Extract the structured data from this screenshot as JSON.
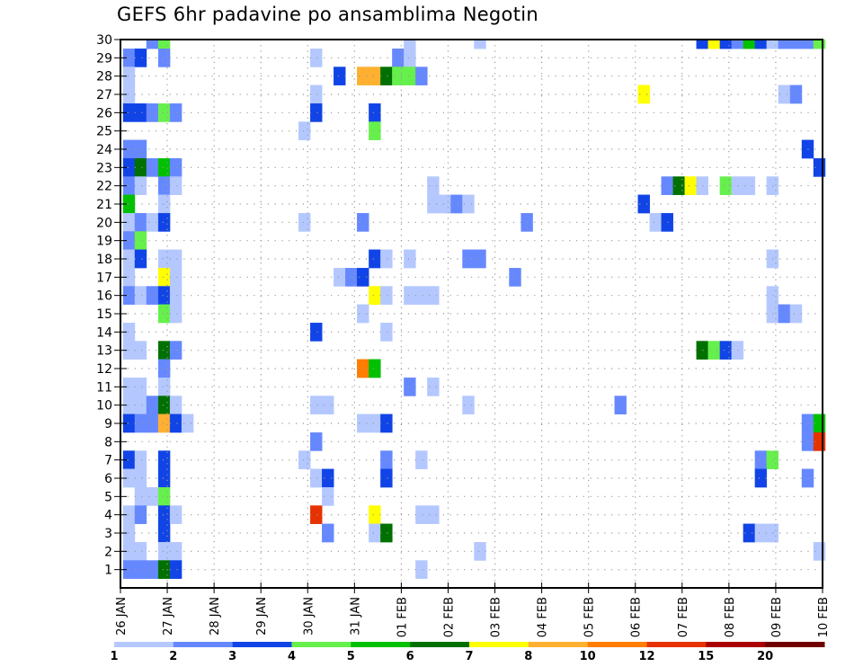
{
  "chart_data": {
    "type": "heatmap",
    "title": "GEFS 6hr padavine po ansamblima Negotin",
    "xlabel": "",
    "ylabel": "",
    "x_ticks": [
      "26 JAN",
      "27 JAN",
      "28 JAN",
      "29 JAN",
      "30 JAN",
      "31 JAN",
      "01 FEB",
      "02 FEB",
      "03 FEB",
      "04 FEB",
      "05 FEB",
      "06 FEB",
      "07 FEB",
      "08 FEB",
      "09 FEB",
      "10 FEB"
    ],
    "y_ticks": [
      1,
      2,
      3,
      4,
      5,
      6,
      7,
      8,
      9,
      10,
      11,
      12,
      13,
      14,
      15,
      16,
      17,
      18,
      19,
      20,
      21,
      22,
      23,
      24,
      25,
      26,
      27,
      28,
      29,
      30
    ],
    "y_range": [
      0,
      30
    ],
    "time_step_hours": 6,
    "n_steps": 60,
    "grid": "dotted",
    "legend_placement": "bottom",
    "levels": [
      1,
      2,
      3,
      4,
      5,
      6,
      7,
      8,
      10,
      12,
      15,
      20
    ],
    "colorbar_labels": [
      "1",
      "2",
      "3",
      "4",
      "5",
      "6",
      "7",
      "8",
      "10",
      "12",
      "15",
      "20"
    ],
    "colors": [
      "#b4c8ff",
      "#6688ff",
      "#1144e6",
      "#66f04c",
      "#00c000",
      "#007000",
      "#ffff00",
      "#ffb030",
      "#ff7d00",
      "#e63200",
      "#aa0000",
      "#700000"
    ],
    "cell_format": "[member, step(1-60, 6h ending), color_class(0-11)]",
    "cells": [
      [
        30,
        3,
        1
      ],
      [
        30,
        4,
        3
      ],
      [
        30,
        25,
        0
      ],
      [
        30,
        31,
        0
      ],
      [
        30,
        50,
        2
      ],
      [
        30,
        51,
        6
      ],
      [
        30,
        52,
        2
      ],
      [
        30,
        53,
        1
      ],
      [
        30,
        54,
        4
      ],
      [
        30,
        55,
        2
      ],
      [
        30,
        56,
        0
      ],
      [
        30,
        57,
        1
      ],
      [
        30,
        58,
        1
      ],
      [
        30,
        59,
        1
      ],
      [
        30,
        60,
        3
      ],
      [
        29,
        1,
        1
      ],
      [
        29,
        2,
        2
      ],
      [
        29,
        4,
        1
      ],
      [
        29,
        17,
        0
      ],
      [
        29,
        24,
        1
      ],
      [
        29,
        25,
        0
      ],
      [
        28,
        1,
        0
      ],
      [
        28,
        19,
        2
      ],
      [
        28,
        21,
        7
      ],
      [
        28,
        22,
        7
      ],
      [
        28,
        23,
        5
      ],
      [
        28,
        24,
        3
      ],
      [
        28,
        25,
        3
      ],
      [
        28,
        26,
        1
      ],
      [
        27,
        1,
        0
      ],
      [
        27,
        17,
        0
      ],
      [
        27,
        45,
        6
      ],
      [
        27,
        57,
        0
      ],
      [
        27,
        58,
        1
      ],
      [
        26,
        1,
        2
      ],
      [
        26,
        2,
        2
      ],
      [
        26,
        3,
        1
      ],
      [
        26,
        4,
        3
      ],
      [
        26,
        5,
        1
      ],
      [
        26,
        17,
        2
      ],
      [
        26,
        22,
        2
      ],
      [
        25,
        16,
        0
      ],
      [
        25,
        22,
        3
      ],
      [
        24,
        1,
        1
      ],
      [
        24,
        2,
        1
      ],
      [
        24,
        59,
        2
      ],
      [
        23,
        1,
        2
      ],
      [
        23,
        2,
        5
      ],
      [
        23,
        3,
        1
      ],
      [
        23,
        4,
        4
      ],
      [
        23,
        5,
        1
      ],
      [
        23,
        60,
        2
      ],
      [
        22,
        1,
        1
      ],
      [
        22,
        2,
        0
      ],
      [
        22,
        4,
        1
      ],
      [
        22,
        5,
        0
      ],
      [
        22,
        27,
        0
      ],
      [
        22,
        47,
        1
      ],
      [
        22,
        48,
        5
      ],
      [
        22,
        49,
        6
      ],
      [
        22,
        50,
        0
      ],
      [
        22,
        52,
        3
      ],
      [
        22,
        53,
        0
      ],
      [
        22,
        54,
        0
      ],
      [
        22,
        56,
        0
      ],
      [
        21,
        1,
        4
      ],
      [
        21,
        4,
        0
      ],
      [
        21,
        27,
        0
      ],
      [
        21,
        28,
        0
      ],
      [
        21,
        29,
        1
      ],
      [
        21,
        30,
        0
      ],
      [
        21,
        45,
        2
      ],
      [
        20,
        1,
        0
      ],
      [
        20,
        2,
        1
      ],
      [
        20,
        3,
        0
      ],
      [
        20,
        4,
        2
      ],
      [
        20,
        16,
        0
      ],
      [
        20,
        21,
        1
      ],
      [
        20,
        35,
        1
      ],
      [
        20,
        46,
        0
      ],
      [
        20,
        47,
        2
      ],
      [
        19,
        1,
        1
      ],
      [
        19,
        2,
        3
      ],
      [
        18,
        1,
        0
      ],
      [
        18,
        2,
        2
      ],
      [
        18,
        4,
        0
      ],
      [
        18,
        5,
        0
      ],
      [
        18,
        22,
        2
      ],
      [
        18,
        23,
        0
      ],
      [
        18,
        25,
        0
      ],
      [
        18,
        30,
        1
      ],
      [
        18,
        31,
        1
      ],
      [
        18,
        56,
        0
      ],
      [
        17,
        1,
        0
      ],
      [
        17,
        4,
        6
      ],
      [
        17,
        5,
        0
      ],
      [
        17,
        19,
        0
      ],
      [
        17,
        20,
        1
      ],
      [
        17,
        21,
        2
      ],
      [
        17,
        34,
        1
      ],
      [
        16,
        1,
        1
      ],
      [
        16,
        2,
        0
      ],
      [
        16,
        3,
        1
      ],
      [
        16,
        4,
        2
      ],
      [
        16,
        5,
        0
      ],
      [
        16,
        22,
        6
      ],
      [
        16,
        23,
        0
      ],
      [
        16,
        25,
        0
      ],
      [
        16,
        26,
        0
      ],
      [
        16,
        27,
        0
      ],
      [
        16,
        56,
        0
      ],
      [
        15,
        4,
        3
      ],
      [
        15,
        5,
        0
      ],
      [
        15,
        21,
        0
      ],
      [
        15,
        56,
        0
      ],
      [
        15,
        57,
        1
      ],
      [
        15,
        58,
        0
      ],
      [
        14,
        1,
        0
      ],
      [
        14,
        17,
        2
      ],
      [
        14,
        23,
        0
      ],
      [
        13,
        1,
        0
      ],
      [
        13,
        2,
        0
      ],
      [
        13,
        4,
        5
      ],
      [
        13,
        5,
        1
      ],
      [
        13,
        50,
        5
      ],
      [
        13,
        51,
        3
      ],
      [
        13,
        52,
        2
      ],
      [
        13,
        53,
        0
      ],
      [
        12,
        4,
        1
      ],
      [
        12,
        21,
        8
      ],
      [
        12,
        22,
        4
      ],
      [
        11,
        1,
        0
      ],
      [
        11,
        2,
        0
      ],
      [
        11,
        4,
        0
      ],
      [
        11,
        25,
        1
      ],
      [
        11,
        27,
        0
      ],
      [
        10,
        1,
        0
      ],
      [
        10,
        2,
        0
      ],
      [
        10,
        3,
        1
      ],
      [
        10,
        4,
        5
      ],
      [
        10,
        5,
        0
      ],
      [
        10,
        17,
        0
      ],
      [
        10,
        18,
        0
      ],
      [
        10,
        30,
        0
      ],
      [
        10,
        43,
        1
      ],
      [
        9,
        1,
        2
      ],
      [
        9,
        2,
        1
      ],
      [
        9,
        3,
        1
      ],
      [
        9,
        4,
        7
      ],
      [
        9,
        5,
        2
      ],
      [
        9,
        6,
        0
      ],
      [
        9,
        21,
        0
      ],
      [
        9,
        22,
        0
      ],
      [
        9,
        23,
        2
      ],
      [
        9,
        59,
        1
      ],
      [
        9,
        60,
        4
      ],
      [
        8,
        17,
        1
      ],
      [
        8,
        59,
        1
      ],
      [
        8,
        60,
        9
      ],
      [
        7,
        1,
        2
      ],
      [
        7,
        2,
        0
      ],
      [
        7,
        4,
        2
      ],
      [
        7,
        16,
        0
      ],
      [
        7,
        23,
        1
      ],
      [
        7,
        26,
        0
      ],
      [
        7,
        55,
        1
      ],
      [
        7,
        56,
        3
      ],
      [
        6,
        1,
        0
      ],
      [
        6,
        2,
        0
      ],
      [
        6,
        4,
        2
      ],
      [
        6,
        17,
        0
      ],
      [
        6,
        18,
        2
      ],
      [
        6,
        23,
        2
      ],
      [
        6,
        55,
        2
      ],
      [
        6,
        59,
        1
      ],
      [
        5,
        2,
        0
      ],
      [
        5,
        3,
        0
      ],
      [
        5,
        4,
        3
      ],
      [
        5,
        18,
        0
      ],
      [
        4,
        1,
        0
      ],
      [
        4,
        2,
        1
      ],
      [
        4,
        4,
        2
      ],
      [
        4,
        5,
        0
      ],
      [
        4,
        17,
        9
      ],
      [
        4,
        22,
        6
      ],
      [
        4,
        26,
        0
      ],
      [
        4,
        27,
        0
      ],
      [
        3,
        1,
        0
      ],
      [
        3,
        4,
        2
      ],
      [
        3,
        18,
        1
      ],
      [
        3,
        22,
        0
      ],
      [
        3,
        23,
        5
      ],
      [
        3,
        54,
        2
      ],
      [
        3,
        55,
        0
      ],
      [
        3,
        56,
        0
      ],
      [
        2,
        1,
        0
      ],
      [
        2,
        2,
        0
      ],
      [
        2,
        4,
        0
      ],
      [
        2,
        5,
        0
      ],
      [
        2,
        31,
        0
      ],
      [
        2,
        60,
        0
      ],
      [
        1,
        1,
        1
      ],
      [
        1,
        2,
        1
      ],
      [
        1,
        3,
        1
      ],
      [
        1,
        4,
        5
      ],
      [
        1,
        5,
        2
      ],
      [
        1,
        26,
        0
      ]
    ]
  }
}
